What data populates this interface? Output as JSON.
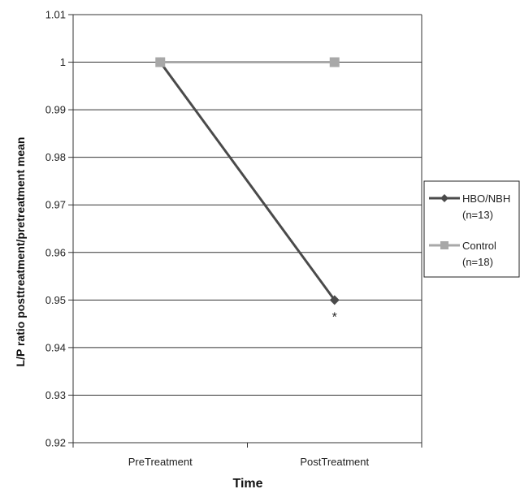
{
  "chart_data": {
    "type": "line",
    "title": "",
    "xlabel": "Time",
    "ylabel": "L/P ratio posttreatment/pretreatment mean",
    "categories": [
      "PreTreatment",
      "PostTreatment"
    ],
    "ylim": [
      0.92,
      1.01
    ],
    "yticks": [
      "0.92",
      "0.93",
      "0.94",
      "0.95",
      "0.96",
      "0.97",
      "0.98",
      "0.99",
      "1",
      "1.01"
    ],
    "grid": true,
    "legend_position": "right",
    "series": [
      {
        "name": "HBO/NBH (n=13)",
        "values": [
          1.0,
          0.95
        ],
        "color": "#4a4a4a",
        "marker": "diamond"
      },
      {
        "name": "Control (n=18)",
        "values": [
          1.0,
          1.0
        ],
        "color": "#a8a8a8",
        "marker": "square"
      }
    ],
    "legend": [
      {
        "line1": "HBO/NBH",
        "line2": "(n=13)"
      },
      {
        "line1": "Control",
        "line2": "(n=18)"
      }
    ],
    "annotations": [
      {
        "text": "*",
        "series": 0,
        "index": 1
      }
    ]
  }
}
